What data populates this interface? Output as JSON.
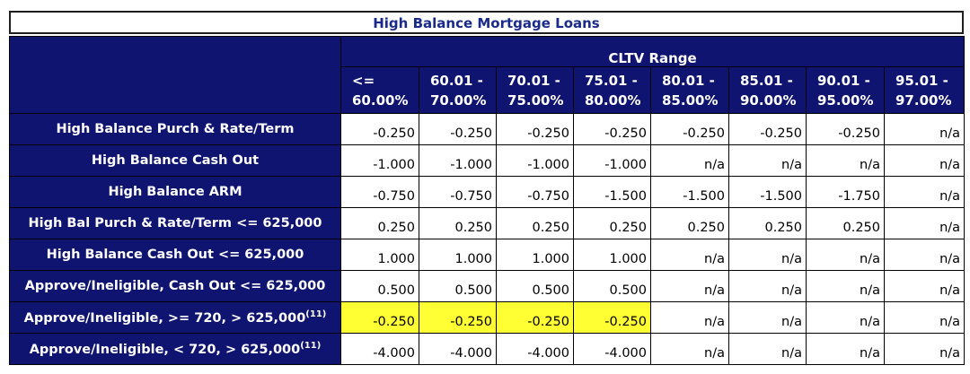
{
  "title": "High Balance Mortgage Loans",
  "group_header": "CLTV Range",
  "columns": [
    {
      "line1": "<=",
      "line2": "60.00%"
    },
    {
      "line1": "60.01 -",
      "line2": "70.00%"
    },
    {
      "line1": "70.01 -",
      "line2": "75.00%"
    },
    {
      "line1": "75.01 -",
      "line2": "80.00%"
    },
    {
      "line1": "80.01 -",
      "line2": "85.00%"
    },
    {
      "line1": "85.01 -",
      "line2": "90.00%"
    },
    {
      "line1": "90.01 -",
      "line2": "95.00%"
    },
    {
      "line1": "95.01 -",
      "line2": "97.00%"
    }
  ],
  "rows": [
    {
      "label": "High Balance Purch & Rate/Term",
      "sup": "",
      "highlight_cols": 0,
      "values": [
        "-0.250",
        "-0.250",
        "-0.250",
        "-0.250",
        "-0.250",
        "-0.250",
        "-0.250",
        "n/a"
      ]
    },
    {
      "label": "High Balance Cash Out",
      "sup": "",
      "highlight_cols": 0,
      "values": [
        "-1.000",
        "-1.000",
        "-1.000",
        "-1.000",
        "n/a",
        "n/a",
        "n/a",
        "n/a"
      ]
    },
    {
      "label": "High Balance ARM",
      "sup": "",
      "highlight_cols": 0,
      "values": [
        "-0.750",
        "-0.750",
        "-0.750",
        "-1.500",
        "-1.500",
        "-1.500",
        "-1.750",
        "n/a"
      ]
    },
    {
      "label": "High Bal Purch & Rate/Term <= 625,000",
      "sup": "",
      "highlight_cols": 0,
      "values": [
        "0.250",
        "0.250",
        "0.250",
        "0.250",
        "0.250",
        "0.250",
        "0.250",
        "n/a"
      ]
    },
    {
      "label": "High Balance Cash Out <= 625,000",
      "sup": "",
      "highlight_cols": 0,
      "values": [
        "1.000",
        "1.000",
        "1.000",
        "1.000",
        "n/a",
        "n/a",
        "n/a",
        "n/a"
      ]
    },
    {
      "label": "Approve/Ineligible, Cash Out <= 625,000",
      "sup": "",
      "highlight_cols": 0,
      "values": [
        "0.500",
        "0.500",
        "0.500",
        "0.500",
        "n/a",
        "n/a",
        "n/a",
        "n/a"
      ]
    },
    {
      "label": "Approve/Ineligible, >= 720, > 625,000",
      "sup": "(11)",
      "highlight_cols": 4,
      "values": [
        "-0.250",
        "-0.250",
        "-0.250",
        "-0.250",
        "n/a",
        "n/a",
        "n/a",
        "n/a"
      ]
    },
    {
      "label": "Approve/Ineligible, < 720, > 625,000",
      "sup": "(11)",
      "highlight_cols": 0,
      "values": [
        "-4.000",
        "-4.000",
        "-4.000",
        "-4.000",
        "n/a",
        "n/a",
        "n/a",
        "n/a"
      ]
    }
  ],
  "colors": {
    "header_bg": "#0f1470",
    "highlight": "#ffff33",
    "title_text": "#1a2a8a"
  }
}
